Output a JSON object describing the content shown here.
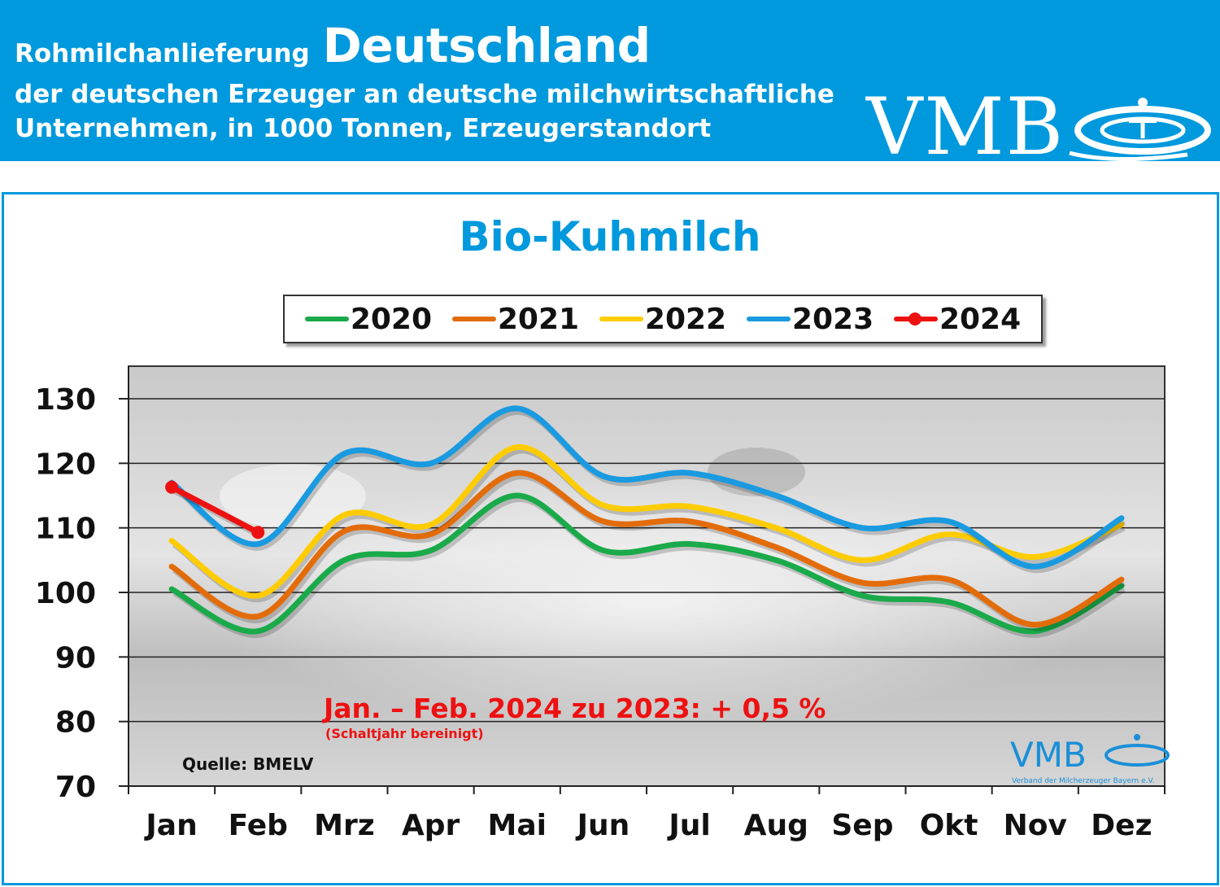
{
  "header": {
    "line1_small": "Rohmilchanlieferung",
    "line1_big": "Deutschland",
    "line2": "der deutschen Erzeuger an deutsche milchwirtschaftliche",
    "line3": "Unternehmen, in 1000 Tonnen, Erzeugerstandort",
    "logo": "VMB"
  },
  "chart_data": {
    "type": "line",
    "title": "Bio-Kuhmilch",
    "categories": [
      "Jan",
      "Feb",
      "Mrz",
      "Apr",
      "Mai",
      "Jun",
      "Jul",
      "Aug",
      "Sep",
      "Okt",
      "Nov",
      "Dez"
    ],
    "ylim": [
      70,
      130
    ],
    "yticks": [
      70,
      80,
      90,
      100,
      110,
      120,
      130
    ],
    "grid": true,
    "legend_position": "top",
    "series": [
      {
        "name": "2020",
        "color": "#1aaa4a",
        "values": [
          100.5,
          94,
          105,
          106.5,
          115,
          106.5,
          107.5,
          105,
          99.5,
          98.5,
          94,
          101
        ]
      },
      {
        "name": "2021",
        "color": "#e36c0a",
        "values": [
          104,
          96.3,
          109.5,
          109,
          118.5,
          111,
          111,
          107,
          101.5,
          102,
          95,
          102
        ]
      },
      {
        "name": "2022",
        "color": "#ffcc00",
        "values": [
          108,
          99.5,
          112,
          110.5,
          122.5,
          113.5,
          113.3,
          110,
          105,
          109,
          105.5,
          110.5
        ]
      },
      {
        "name": "2023",
        "color": "#1a9ae0",
        "values": [
          117,
          107.5,
          121.5,
          120,
          128.5,
          118,
          118.5,
          115,
          110,
          111,
          104,
          111.5
        ]
      },
      {
        "name": "2024",
        "color": "#ee1111",
        "markers": true,
        "values": [
          116.3,
          109.3,
          null,
          null,
          null,
          null,
          null,
          null,
          null,
          null,
          null,
          null
        ]
      }
    ],
    "annotations": {
      "main": "Jan. – Feb. 2024 zu 2023: + 0,5 %",
      "sub": "(Schaltjahr bereinigt)",
      "source": "Quelle: BMELV",
      "watermark_logo": "VMB",
      "watermark_text": "Verband der Milcherzeuger Bayern e.V."
    }
  }
}
